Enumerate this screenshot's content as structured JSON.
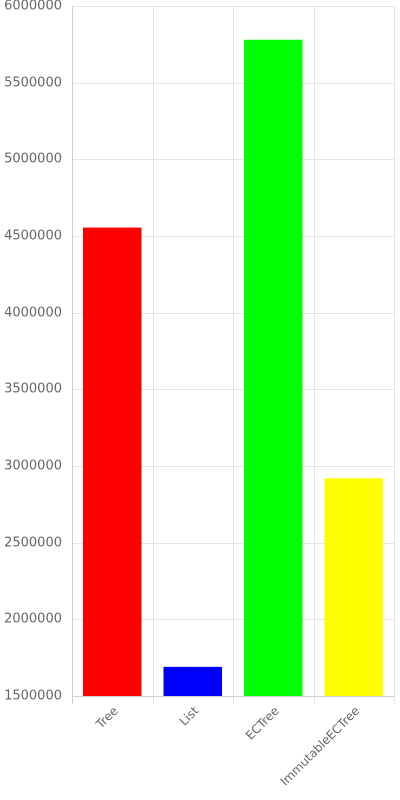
{
  "chart_data": {
    "type": "bar",
    "title": "",
    "xlabel": "",
    "ylabel": "",
    "categories": [
      "Tree",
      "List",
      "ECTree",
      "ImmutableECTree"
    ],
    "values": [
      4555000,
      1690000,
      5780000,
      2920000
    ],
    "colors": [
      "#ff0000",
      "#0000ff",
      "#00ff00",
      "#ffff00"
    ],
    "ylim": [
      1500000,
      6000000
    ],
    "yticks": [
      1500000,
      2000000,
      2500000,
      3000000,
      3500000,
      4000000,
      4500000,
      5000000,
      5500000,
      6000000
    ],
    "ytick_labels": [
      "1500000",
      "2000000",
      "2500000",
      "3000000",
      "3500000",
      "4000000",
      "4500000",
      "5000000",
      "5500000",
      "6000000"
    ],
    "grid": true,
    "legend": "none"
  }
}
